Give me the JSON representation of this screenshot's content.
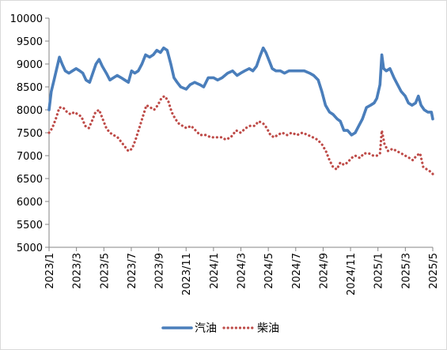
{
  "chart_data": {
    "type": "line",
    "title": "",
    "xlabel": "",
    "ylabel": "",
    "ylim": [
      5000,
      10000
    ],
    "y_ticks": [
      5000,
      5500,
      6000,
      6500,
      7000,
      7500,
      8000,
      8500,
      9000,
      9500,
      10000
    ],
    "x_tick_labels": [
      "2023/1",
      "2023/3",
      "2023/5",
      "2023/7",
      "2023/9",
      "2023/11",
      "2024/1",
      "2024/3",
      "2024/5",
      "2024/7",
      "2024/9",
      "2024/11",
      "2025/1",
      "2025/3",
      "2025/5"
    ],
    "xlim": [
      "2023-01-01",
      "2025-05-01"
    ],
    "grid": false,
    "legend_position": "bottom",
    "series": [
      {
        "name": "汽油",
        "style": "solid",
        "color": "#4a7ebb",
        "points": [
          [
            "2023-01-01",
            8000
          ],
          [
            "2023-01-06",
            8400
          ],
          [
            "2023-01-12",
            8650
          ],
          [
            "2023-01-18",
            8900
          ],
          [
            "2023-01-24",
            9150
          ],
          [
            "2023-01-30",
            9000
          ],
          [
            "2023-02-06",
            8850
          ],
          [
            "2023-02-14",
            8800
          ],
          [
            "2023-02-22",
            8850
          ],
          [
            "2023-03-02",
            8900
          ],
          [
            "2023-03-10",
            8850
          ],
          [
            "2023-03-17",
            8800
          ],
          [
            "2023-03-24",
            8650
          ],
          [
            "2023-04-01",
            8600
          ],
          [
            "2023-04-08",
            8800
          ],
          [
            "2023-04-15",
            9000
          ],
          [
            "2023-04-22",
            9100
          ],
          [
            "2023-04-29",
            8950
          ],
          [
            "2023-05-08",
            8800
          ],
          [
            "2023-05-16",
            8650
          ],
          [
            "2023-05-24",
            8700
          ],
          [
            "2023-06-01",
            8750
          ],
          [
            "2023-06-10",
            8700
          ],
          [
            "2023-06-18",
            8650
          ],
          [
            "2023-06-26",
            8600
          ],
          [
            "2023-07-03",
            8850
          ],
          [
            "2023-07-10",
            8800
          ],
          [
            "2023-07-18",
            8850
          ],
          [
            "2023-07-26",
            9000
          ],
          [
            "2023-08-03",
            9200
          ],
          [
            "2023-08-12",
            9150
          ],
          [
            "2023-08-20",
            9200
          ],
          [
            "2023-08-28",
            9300
          ],
          [
            "2023-09-05",
            9250
          ],
          [
            "2023-09-12",
            9350
          ],
          [
            "2023-09-20",
            9300
          ],
          [
            "2023-09-28",
            9000
          ],
          [
            "2023-10-05",
            8700
          ],
          [
            "2023-10-12",
            8600
          ],
          [
            "2023-10-20",
            8500
          ],
          [
            "2023-11-01",
            8450
          ],
          [
            "2023-11-10",
            8550
          ],
          [
            "2023-11-20",
            8600
          ],
          [
            "2023-12-01",
            8550
          ],
          [
            "2023-12-10",
            8500
          ],
          [
            "2023-12-20",
            8700
          ],
          [
            "2024-01-01",
            8700
          ],
          [
            "2024-01-10",
            8650
          ],
          [
            "2024-01-20",
            8700
          ],
          [
            "2024-02-01",
            8800
          ],
          [
            "2024-02-12",
            8850
          ],
          [
            "2024-02-22",
            8750
          ],
          [
            "2024-03-01",
            8800
          ],
          [
            "2024-03-10",
            8850
          ],
          [
            "2024-03-20",
            8900
          ],
          [
            "2024-03-28",
            8850
          ],
          [
            "2024-04-05",
            8950
          ],
          [
            "2024-04-12",
            9150
          ],
          [
            "2024-04-20",
            9350
          ],
          [
            "2024-04-26",
            9250
          ],
          [
            "2024-05-04",
            9050
          ],
          [
            "2024-05-10",
            8900
          ],
          [
            "2024-05-18",
            8850
          ],
          [
            "2024-05-28",
            8850
          ],
          [
            "2024-06-06",
            8800
          ],
          [
            "2024-06-16",
            8850
          ],
          [
            "2024-06-26",
            8850
          ],
          [
            "2024-07-08",
            8850
          ],
          [
            "2024-07-20",
            8850
          ],
          [
            "2024-08-01",
            8800
          ],
          [
            "2024-08-10",
            8750
          ],
          [
            "2024-08-20",
            8650
          ],
          [
            "2024-08-28",
            8400
          ],
          [
            "2024-09-05",
            8100
          ],
          [
            "2024-09-14",
            7950
          ],
          [
            "2024-09-22",
            7900
          ],
          [
            "2024-10-01",
            7800
          ],
          [
            "2024-10-08",
            7750
          ],
          [
            "2024-10-16",
            7550
          ],
          [
            "2024-10-24",
            7550
          ],
          [
            "2024-11-02",
            7450
          ],
          [
            "2024-11-10",
            7500
          ],
          [
            "2024-11-18",
            7650
          ],
          [
            "2024-11-26",
            7800
          ],
          [
            "2024-12-05",
            8050
          ],
          [
            "2024-12-14",
            8100
          ],
          [
            "2024-12-22",
            8150
          ],
          [
            "2024-12-28",
            8250
          ],
          [
            "2025-01-04",
            8550
          ],
          [
            "2025-01-08",
            9200
          ],
          [
            "2025-01-12",
            8900
          ],
          [
            "2025-01-18",
            8850
          ],
          [
            "2025-01-26",
            8900
          ],
          [
            "2025-02-04",
            8700
          ],
          [
            "2025-02-12",
            8550
          ],
          [
            "2025-02-20",
            8400
          ],
          [
            "2025-03-01",
            8300
          ],
          [
            "2025-03-08",
            8150
          ],
          [
            "2025-03-16",
            8100
          ],
          [
            "2025-03-24",
            8150
          ],
          [
            "2025-03-30",
            8300
          ],
          [
            "2025-04-05",
            8100
          ],
          [
            "2025-04-12",
            8000
          ],
          [
            "2025-04-20",
            7950
          ],
          [
            "2025-04-28",
            7950
          ],
          [
            "2025-05-01",
            7800
          ]
        ]
      },
      {
        "name": "柴油",
        "style": "dotted",
        "color": "#be4b48",
        "points": [
          [
            "2023-01-01",
            7500
          ],
          [
            "2023-01-08",
            7600
          ],
          [
            "2023-01-16",
            7800
          ],
          [
            "2023-01-24",
            8050
          ],
          [
            "2023-02-01",
            8050
          ],
          [
            "2023-02-10",
            7950
          ],
          [
            "2023-02-18",
            7900
          ],
          [
            "2023-02-26",
            7950
          ],
          [
            "2023-03-06",
            7900
          ],
          [
            "2023-03-14",
            7850
          ],
          [
            "2023-03-22",
            7650
          ],
          [
            "2023-03-30",
            7600
          ],
          [
            "2023-04-06",
            7750
          ],
          [
            "2023-04-14",
            7950
          ],
          [
            "2023-04-22",
            8000
          ],
          [
            "2023-04-30",
            7800
          ],
          [
            "2023-05-08",
            7600
          ],
          [
            "2023-05-16",
            7500
          ],
          [
            "2023-05-24",
            7450
          ],
          [
            "2023-06-02",
            7400
          ],
          [
            "2023-06-10",
            7300
          ],
          [
            "2023-06-18",
            7200
          ],
          [
            "2023-06-26",
            7100
          ],
          [
            "2023-07-04",
            7150
          ],
          [
            "2023-07-12",
            7350
          ],
          [
            "2023-07-20",
            7600
          ],
          [
            "2023-07-28",
            7850
          ],
          [
            "2023-08-05",
            8100
          ],
          [
            "2023-08-14",
            8050
          ],
          [
            "2023-08-22",
            8000
          ],
          [
            "2023-08-30",
            8100
          ],
          [
            "2023-09-07",
            8250
          ],
          [
            "2023-09-14",
            8300
          ],
          [
            "2023-09-22",
            8200
          ],
          [
            "2023-09-30",
            7950
          ],
          [
            "2023-10-08",
            7800
          ],
          [
            "2023-10-16",
            7700
          ],
          [
            "2023-10-24",
            7650
          ],
          [
            "2023-11-02",
            7600
          ],
          [
            "2023-11-12",
            7650
          ],
          [
            "2023-11-22",
            7550
          ],
          [
            "2023-12-02",
            7450
          ],
          [
            "2023-12-14",
            7450
          ],
          [
            "2023-12-26",
            7400
          ],
          [
            "2024-01-06",
            7400
          ],
          [
            "2024-01-18",
            7400
          ],
          [
            "2024-01-28",
            7350
          ],
          [
            "2024-02-08",
            7400
          ],
          [
            "2024-02-20",
            7550
          ],
          [
            "2024-03-01",
            7500
          ],
          [
            "2024-03-12",
            7600
          ],
          [
            "2024-03-22",
            7650
          ],
          [
            "2024-04-01",
            7650
          ],
          [
            "2024-04-10",
            7750
          ],
          [
            "2024-04-20",
            7700
          ],
          [
            "2024-04-28",
            7600
          ],
          [
            "2024-05-06",
            7450
          ],
          [
            "2024-05-14",
            7400
          ],
          [
            "2024-05-22",
            7450
          ],
          [
            "2024-06-01",
            7500
          ],
          [
            "2024-06-12",
            7450
          ],
          [
            "2024-06-22",
            7500
          ],
          [
            "2024-07-04",
            7450
          ],
          [
            "2024-07-16",
            7500
          ],
          [
            "2024-07-28",
            7450
          ],
          [
            "2024-08-08",
            7400
          ],
          [
            "2024-08-18",
            7350
          ],
          [
            "2024-08-28",
            7250
          ],
          [
            "2024-09-06",
            7100
          ],
          [
            "2024-09-14",
            6900
          ],
          [
            "2024-09-22",
            6750
          ],
          [
            "2024-09-30",
            6700
          ],
          [
            "2024-10-08",
            6850
          ],
          [
            "2024-10-16",
            6800
          ],
          [
            "2024-10-24",
            6850
          ],
          [
            "2024-11-02",
            6950
          ],
          [
            "2024-11-10",
            7000
          ],
          [
            "2024-11-20",
            6950
          ],
          [
            "2024-11-30",
            7050
          ],
          [
            "2024-12-10",
            7050
          ],
          [
            "2024-12-20",
            7000
          ],
          [
            "2024-12-28",
            7000
          ],
          [
            "2025-01-04",
            7050
          ],
          [
            "2025-01-08",
            7550
          ],
          [
            "2025-01-14",
            7250
          ],
          [
            "2025-01-22",
            7100
          ],
          [
            "2025-02-01",
            7150
          ],
          [
            "2025-02-10",
            7100
          ],
          [
            "2025-02-20",
            7050
          ],
          [
            "2025-03-01",
            7000
          ],
          [
            "2025-03-10",
            6950
          ],
          [
            "2025-03-18",
            6900
          ],
          [
            "2025-03-26",
            7000
          ],
          [
            "2025-04-03",
            7050
          ],
          [
            "2025-04-10",
            6750
          ],
          [
            "2025-04-18",
            6700
          ],
          [
            "2025-04-26",
            6650
          ],
          [
            "2025-05-01",
            6600
          ]
        ]
      }
    ]
  }
}
